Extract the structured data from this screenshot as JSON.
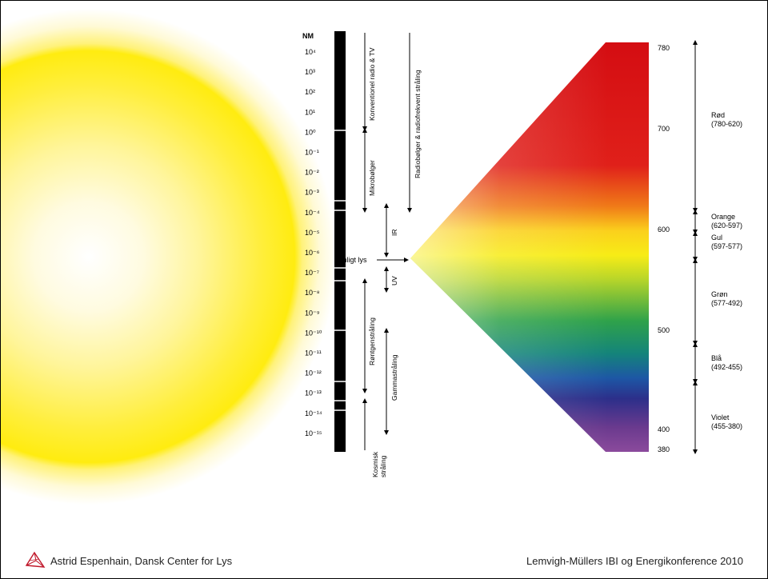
{
  "diagram": {
    "scale_header": "NM",
    "scale_labels": [
      "10⁴",
      "10³",
      "10²",
      "10¹",
      "10⁰",
      "10⁻¹",
      "10⁻²",
      "10⁻³",
      "10⁻⁴",
      "10⁻⁵",
      "10⁻⁶",
      "10⁻⁷",
      "10⁻⁸",
      "10⁻⁹",
      "10⁻¹⁰",
      "10⁻¹¹",
      "10⁻¹²",
      "10⁻¹³",
      "10⁻¹⁴",
      "10⁻¹⁵"
    ],
    "bands": {
      "radio_tv": "Konventionel radio & TV",
      "radio_freq": "Radiobølger & radiofrekvent stråling",
      "microwave": "Mikrobølger",
      "ir": "IR",
      "uv": "UV",
      "xray": "Røntgenstråling",
      "gamma": "Gammastråling",
      "cosmic_line1": "Kosmisk",
      "cosmic_line2": "stråling"
    },
    "visible_light_label": "Synligt lys",
    "wavelength_ticks": [
      "780",
      "700",
      "600",
      "500",
      "400",
      "380"
    ],
    "colors": [
      {
        "name": "Rød",
        "range": "(780-620)"
      },
      {
        "name": "Orange",
        "range": "(620-597)"
      },
      {
        "name": "Gul",
        "range": "(597-577)"
      },
      {
        "name": "Grøn",
        "range": "(577-492)"
      },
      {
        "name": "Blå",
        "range": "(492-455)"
      },
      {
        "name": "Violet",
        "range": "(455-380)"
      }
    ],
    "spectrum_colors": [
      "#d40d12",
      "#e0201a",
      "#f07a18",
      "#fbd01c",
      "#f7ec16",
      "#b6d52a",
      "#2fa24a",
      "#14847a",
      "#1d57a5",
      "#2c2f8a",
      "#6a3a8e",
      "#8b4a9c"
    ]
  },
  "footer": {
    "left_text": "Astrid Espenhain, Dansk Center for Lys",
    "right_text": "Lemvigh-Müllers IBI og Energikonference 2010",
    "logo_icon": "prism-logo-icon"
  }
}
